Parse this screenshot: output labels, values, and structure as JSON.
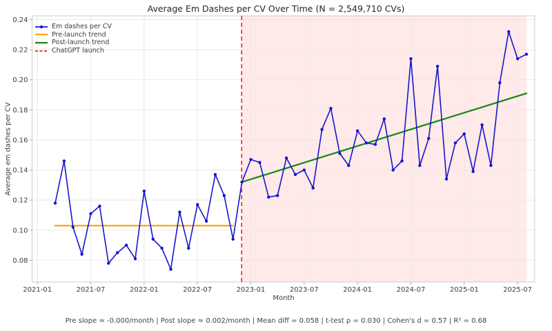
{
  "caption": "Pre slope ≈ -0.000/month | Post slope ≈ 0.002/month | Mean diff = 0.058 | t-test p = 0.030 | Cohen's d = 0.57 | R² = 0.68",
  "chart_data": {
    "type": "line",
    "title": "Average Em Dashes per CV Over Time (N = 2,549,710 CVs)",
    "xlabel": "Month",
    "ylabel": "Average em dashes per CV",
    "grid": true,
    "legend_position": "upper left",
    "xticks": [
      "2021-01",
      "2021-07",
      "2022-01",
      "2022-07",
      "2023-01",
      "2023-07",
      "2024-01",
      "2024-07",
      "2025-01",
      "2025-07"
    ],
    "yticks": [
      0.08,
      0.1,
      0.12,
      0.14,
      0.16,
      0.18,
      0.2,
      0.22,
      0.24
    ],
    "ylim": [
      0.0655,
      0.2425
    ],
    "xlim_index": [
      -0.6,
      55.93
    ],
    "x": [
      "2021-03",
      "2021-04",
      "2021-05",
      "2021-06",
      "2021-07",
      "2021-08",
      "2021-09",
      "2021-10",
      "2021-11",
      "2021-12",
      "2022-01",
      "2022-02",
      "2022-03",
      "2022-04",
      "2022-05",
      "2022-06",
      "2022-07",
      "2022-08",
      "2022-09",
      "2022-10",
      "2022-11",
      "2022-12",
      "2023-01",
      "2023-02",
      "2023-03",
      "2023-04",
      "2023-05",
      "2023-06",
      "2023-07",
      "2023-08",
      "2023-09",
      "2023-10",
      "2023-11",
      "2023-12",
      "2024-01",
      "2024-02",
      "2024-03",
      "2024-04",
      "2024-05",
      "2024-06",
      "2024-07",
      "2024-08",
      "2024-09",
      "2024-10",
      "2024-11",
      "2024-12",
      "2025-01",
      "2025-02",
      "2025-03",
      "2025-04",
      "2025-05",
      "2025-06",
      "2025-07",
      "2025-08"
    ],
    "series": [
      {
        "name": "Em dashes per CV",
        "color": "#1515cf",
        "marker": "circle",
        "values": [
          0.118,
          0.146,
          0.102,
          0.084,
          0.111,
          0.116,
          0.078,
          0.085,
          0.09,
          0.081,
          0.126,
          0.094,
          0.088,
          0.074,
          0.112,
          0.088,
          0.117,
          0.106,
          0.137,
          0.123,
          0.094,
          0.132,
          0.147,
          0.145,
          0.122,
          0.123,
          0.148,
          0.137,
          0.14,
          0.128,
          0.167,
          0.181,
          0.151,
          0.143,
          0.166,
          0.158,
          0.157,
          0.174,
          0.14,
          0.146,
          0.214,
          0.143,
          0.161,
          0.209,
          0.134,
          0.158,
          0.164,
          0.139,
          0.17,
          0.143,
          0.198,
          0.232,
          0.214,
          0.217
        ]
      }
    ],
    "trend_pre": {
      "name": "Pre-launch trend",
      "color": "#ffa500",
      "x": [
        "2021-03",
        "2022-11"
      ],
      "values": [
        0.103,
        0.103
      ]
    },
    "trend_post": {
      "name": "Post-launch trend",
      "color": "#128812",
      "x": [
        "2022-12",
        "2025-08"
      ],
      "values": [
        0.132,
        0.191
      ]
    },
    "launch_marker": {
      "name": "ChatGPT launch",
      "color": "#f02020",
      "date": "2022-11-30",
      "style": "dashed"
    },
    "shaded_region": {
      "from": "2022-11-30",
      "to": "2025-08",
      "color": "rgba(255,0,0,0.085)"
    },
    "legend": [
      {
        "label": "Em dashes per CV",
        "color": "#1515cf",
        "type": "line-marker"
      },
      {
        "label": "Pre-launch trend",
        "color": "#ffa500",
        "type": "line"
      },
      {
        "label": "Post-launch trend",
        "color": "#128812",
        "type": "line"
      },
      {
        "label": "ChatGPT launch",
        "color": "#f02020",
        "type": "dashed-line"
      }
    ]
  }
}
